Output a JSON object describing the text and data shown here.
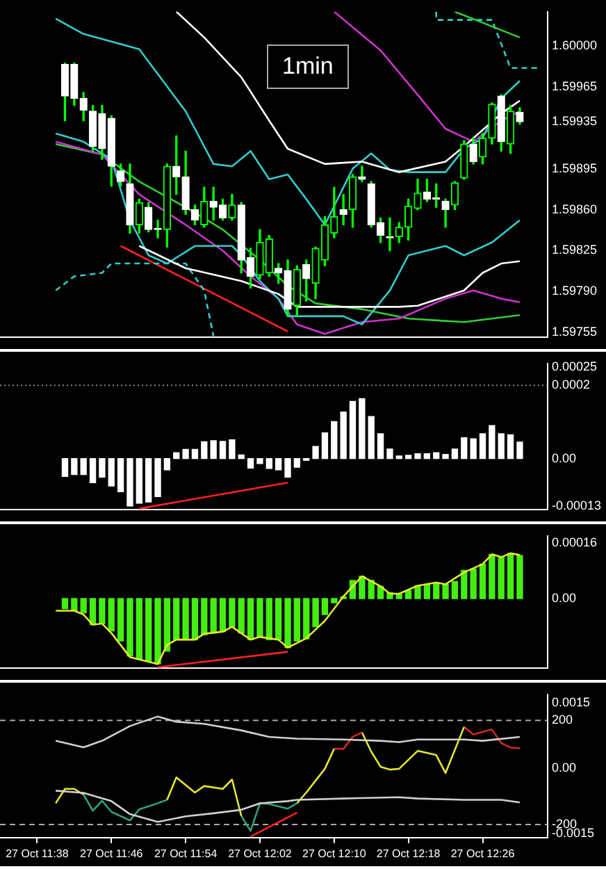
{
  "chart_data": [
    {
      "type": "candlestick",
      "annotations": [
        "1min"
      ],
      "tick_labels": "y",
      "xlim": [
        "--10-27T11:34",
        "--10-27T12:33"
      ],
      "ylim": [
        1.59751,
        1.60029
      ],
      "yticks": [
        {
          "value": 1.6,
          "label": "1.60000"
        },
        {
          "value": 1.59965,
          "label": "1.59965"
        },
        {
          "value": 1.59935,
          "label": "1.59935"
        },
        {
          "value": 1.59895,
          "label": "1.59895"
        },
        {
          "value": 1.5986,
          "label": "1.59860"
        },
        {
          "value": 1.59825,
          "label": "1.59825"
        },
        {
          "value": 1.5979,
          "label": "1.59790"
        },
        {
          "value": 1.59755,
          "label": "1.59755"
        }
      ],
      "x": [
        "--10-27T11:41",
        "--10-27T11:42",
        "--10-27T11:43",
        "--10-27T11:44",
        "--10-27T11:45",
        "--10-27T11:46",
        "--10-27T11:47",
        "--10-27T11:48",
        "--10-27T11:49",
        "--10-27T11:50",
        "--10-27T11:51",
        "--10-27T11:52",
        "--10-27T11:53",
        "--10-27T11:54",
        "--10-27T11:55",
        "--10-27T11:56",
        "--10-27T11:57",
        "--10-27T11:58",
        "--10-27T11:59",
        "--10-27T12:00",
        "--10-27T12:01",
        "--10-27T12:02",
        "--10-27T12:03",
        "--10-27T12:04",
        "--10-27T12:05",
        "--10-27T12:06",
        "--10-27T12:07",
        "--10-27T12:08",
        "--10-27T12:09",
        "--10-27T12:10",
        "--10-27T12:11",
        "--10-27T12:12",
        "--10-27T12:13",
        "--10-27T12:14",
        "--10-27T12:15",
        "--10-27T12:16",
        "--10-27T12:17",
        "--10-27T12:18",
        "--10-27T12:19",
        "--10-27T12:20",
        "--10-27T12:21",
        "--10-27T12:22",
        "--10-27T12:23",
        "--10-27T12:24",
        "--10-27T12:25",
        "--10-27T12:26",
        "--10-27T12:27",
        "--10-27T12:28",
        "--10-27T12:29",
        "--10-27T12:30"
      ],
      "ohlc": [
        [
          1.59984,
          1.59985,
          1.59936,
          1.59957
        ],
        [
          1.59984,
          1.59985,
          1.59949,
          1.59955
        ],
        [
          1.59955,
          1.5996,
          1.59936,
          1.59945
        ],
        [
          1.59944,
          1.59949,
          1.5991,
          1.59914
        ],
        [
          1.59942,
          1.59949,
          1.59903,
          1.59912
        ],
        [
          1.59938,
          1.5994,
          1.5988,
          1.59897
        ],
        [
          1.59893,
          1.59899,
          1.5988,
          1.59884
        ],
        [
          1.59882,
          1.59899,
          1.5984,
          1.59847
        ],
        [
          1.59847,
          1.59869,
          1.5984,
          1.59866
        ],
        [
          1.59862,
          1.59866,
          1.59841,
          1.59843
        ],
        [
          1.59844,
          1.59851,
          1.59836,
          1.59843
        ],
        [
          1.59843,
          1.59899,
          1.59828,
          1.59897
        ],
        [
          1.59897,
          1.59923,
          1.59873,
          1.59888
        ],
        [
          1.59888,
          1.5991,
          1.59856,
          1.5986
        ],
        [
          1.5986,
          1.59864,
          1.59847,
          1.59851
        ],
        [
          1.59847,
          1.59879,
          1.59845,
          1.59867
        ],
        [
          1.59867,
          1.59879,
          1.59851,
          1.59862
        ],
        [
          1.59864,
          1.59869,
          1.59851,
          1.59853
        ],
        [
          1.59853,
          1.59873,
          1.59851,
          1.59864
        ],
        [
          1.59864,
          1.59866,
          1.59806,
          1.59817
        ],
        [
          1.59819,
          1.59827,
          1.59793,
          1.59803
        ],
        [
          1.59804,
          1.59843,
          1.59801,
          1.59832
        ],
        [
          1.59806,
          1.59838,
          1.59803,
          1.59835
        ],
        [
          1.5981,
          1.59814,
          1.59797,
          1.59806
        ],
        [
          1.59808,
          1.59817,
          1.59769,
          1.59775
        ],
        [
          1.59778,
          1.59812,
          1.59769,
          1.59809
        ],
        [
          1.59813,
          1.59817,
          1.59782,
          1.59801
        ],
        [
          1.59797,
          1.59828,
          1.59784,
          1.59827
        ],
        [
          1.59817,
          1.59854,
          1.59812,
          1.59847
        ],
        [
          1.5984,
          1.59879,
          1.59836,
          1.59854
        ],
        [
          1.5986,
          1.59873,
          1.59847,
          1.59856
        ],
        [
          1.5986,
          1.5989,
          1.59845,
          1.59888
        ],
        [
          1.59888,
          1.59897,
          1.59884,
          1.59886
        ],
        [
          1.59882,
          1.59884,
          1.59845,
          1.59847
        ],
        [
          1.59849,
          1.59853,
          1.59832,
          1.59838
        ],
        [
          1.59837,
          1.59853,
          1.59825,
          1.59836
        ],
        [
          1.59837,
          1.59849,
          1.59832,
          1.59845
        ],
        [
          1.59845,
          1.59869,
          1.59834,
          1.59863
        ],
        [
          1.59861,
          1.59886,
          1.5986,
          1.59874
        ],
        [
          1.59875,
          1.59886,
          1.59867,
          1.59869
        ],
        [
          1.5987,
          1.59882,
          1.59862,
          1.59869
        ],
        [
          1.59867,
          1.59869,
          1.59845,
          1.5986
        ],
        [
          1.59864,
          1.59884,
          1.5986,
          1.59883
        ],
        [
          1.59887,
          1.59919,
          1.59886,
          1.59916
        ],
        [
          1.59916,
          1.59921,
          1.59899,
          1.59901
        ],
        [
          1.59905,
          1.59925,
          1.59899,
          1.59921
        ],
        [
          1.59921,
          1.59951,
          1.59916,
          1.5995
        ],
        [
          1.59957,
          1.59958,
          1.5991,
          1.59918
        ],
        [
          1.59916,
          1.59949,
          1.59908,
          1.59944
        ],
        [
          1.59943,
          1.59947,
          1.59933,
          1.59935
        ]
      ],
      "color": "#00ff00",
      "colors": [
        "#ffffff",
        "#ffffff",
        "#ffffff",
        "#ffffff",
        "#ffffff",
        "#ffffff",
        "#ffffff",
        "#ffffff",
        "#00ff00",
        "#ffffff",
        "#ffffff",
        "#00ff00",
        "#ffffff",
        "#ffffff",
        "#ffffff",
        "#00ff00",
        "#ffffff",
        "#ffffff",
        "#00ff00",
        "#ffffff",
        "#ffffff",
        "#00ff00",
        "#00ff00",
        "#ffffff",
        "#ffffff",
        "#00ff00",
        "#ffffff",
        "#00ff00",
        "#00ff00",
        "#00ff00",
        "#ffffff",
        "#00ff00",
        "#ffffff",
        "#ffffff",
        "#ffffff",
        "#ffffff",
        "#00ff00",
        "#00ff00",
        "#00ff00",
        "#ffffff",
        "#ffffff",
        "#ffffff",
        "#00ff00",
        "#00ff00",
        "#ffffff",
        "#00ff00",
        "#00ff00",
        "#ffffff",
        "#00ff00",
        "#ffffff"
      ],
      "series": [
        {
          "type": "line",
          "color": "#ffffff",
          "x": [
            "--10-27T11:53",
            "--10-27T11:56",
            "--10-27T12:00",
            "--10-27T12:03",
            "--10-27T12:05",
            "--10-27T12:09",
            "--10-27T12:13",
            "--10-27T12:17",
            "--10-27T12:22",
            "--10-27T12:24",
            "--10-27T12:28",
            "--10-27T12:30"
          ],
          "values": [
            1.60029,
            1.60007,
            1.59973,
            1.59936,
            1.59912,
            1.59899,
            1.59901,
            1.59892,
            1.59901,
            1.59914,
            1.59942,
            1.59953
          ]
        },
        {
          "type": "line",
          "color": "#ffffff",
          "x": [
            "--10-27T11:49",
            "--10-27T11:54",
            "--10-27T12:00",
            "--10-27T12:04",
            "--10-27T12:06",
            "--10-27T12:11",
            "--10-27T12:17",
            "--10-27T12:19",
            "--10-27T12:24",
            "--10-27T12:26",
            "--10-27T12:28",
            "--10-27T12:30"
          ],
          "values": [
            1.59829,
            1.5981,
            1.59799,
            1.59788,
            1.59777,
            1.59777,
            1.59777,
            1.59778,
            1.59791,
            1.59806,
            1.59814,
            1.59816
          ]
        },
        {
          "type": "line",
          "color": "#33cccc",
          "x": [
            "--10-27T11:40",
            "--10-27T11:43",
            "--10-27T11:49",
            "--10-27T11:54",
            "--10-27T11:57",
            "--10-27T11:59",
            "--10-27T12:01",
            "--10-27T12:03",
            "--10-27T12:05",
            "--10-27T12:07",
            "--10-27T12:09",
            "--10-27T12:12",
            "--10-27T12:14",
            "--10-27T12:16",
            "--10-27T12:18",
            "--10-27T12:22",
            "--10-27T12:24",
            "--10-27T12:26",
            "--10-27T12:28",
            "--10-27T12:30"
          ],
          "values": [
            1.60023,
            1.6001,
            1.59997,
            1.59944,
            1.59899,
            1.59897,
            1.5991,
            1.59886,
            1.5989,
            1.59869,
            1.59847,
            1.59895,
            1.59908,
            1.59894,
            1.59892,
            1.59892,
            1.59912,
            1.59921,
            1.59955,
            1.5997
          ]
        },
        {
          "type": "line",
          "color": "#33cccc",
          "x": [
            "--10-27T11:40",
            "--10-27T11:43",
            "--10-27T11:46",
            "--10-27T11:48",
            "--10-27T11:50",
            "--10-27T11:52",
            "--10-27T11:55",
            "--10-27T11:59",
            "--10-27T12:00",
            "--10-27T12:02",
            "--10-27T12:04",
            "--10-27T12:05",
            "--10-27T12:07",
            "--10-27T12:11",
            "--10-27T12:13",
            "--10-27T12:16",
            "--10-27T12:18",
            "--10-27T12:22",
            "--10-27T12:24",
            "--10-27T12:27",
            "--10-27T12:30"
          ],
          "values": [
            1.59925,
            1.59918,
            1.59903,
            1.59851,
            1.59821,
            1.59814,
            1.59829,
            1.59829,
            1.59821,
            1.59799,
            1.59784,
            1.59769,
            1.59769,
            1.59769,
            1.59762,
            1.59791,
            1.59821,
            1.59829,
            1.59821,
            1.59832,
            1.59851
          ]
        },
        {
          "type": "line",
          "color": "#cc33cc",
          "x": [
            "--10-27T12:10",
            "--10-27T12:15",
            "--10-27T12:19",
            "--10-27T12:22",
            "--10-27T12:25",
            "--10-27T12:28",
            "--10-27T12:30"
          ],
          "values": [
            1.60029,
            1.59996,
            1.59958,
            1.59929,
            1.59918,
            1.59936,
            1.59944
          ]
        },
        {
          "type": "line",
          "color": "#cc33cc",
          "x": [
            "--10-27T11:40",
            "--10-27T11:45",
            "--10-27T11:49",
            "--10-27T11:54",
            "--10-27T11:58",
            "--10-27T12:01",
            "--10-27T12:04",
            "--10-27T12:06",
            "--10-27T12:09",
            "--10-27T12:13",
            "--10-27T12:17",
            "--10-27T12:22",
            "--10-27T12:25",
            "--10-27T12:28",
            "--10-27T12:30"
          ],
          "values": [
            1.59918,
            1.59907,
            1.59873,
            1.59847,
            1.59825,
            1.59803,
            1.59784,
            1.59762,
            1.59754,
            1.59764,
            1.59767,
            1.59784,
            1.59791,
            1.59784,
            1.59781
          ]
        },
        {
          "type": "line",
          "color": "#33cc33",
          "x": [
            "--10-27T11:40",
            "--10-27T11:45",
            "--10-27T11:49",
            "--10-27T11:54",
            "--10-27T11:58",
            "--10-27T12:02",
            "--10-27T12:05",
            "--10-27T12:08",
            "--10-27T12:13",
            "--10-27T12:18",
            "--10-27T12:22",
            "--10-27T12:24",
            "--10-27T12:30"
          ],
          "values": [
            1.59916,
            1.59907,
            1.59884,
            1.59862,
            1.59843,
            1.59817,
            1.59795,
            1.5978,
            1.59775,
            1.59767,
            1.59765,
            1.59764,
            1.5977
          ]
        },
        {
          "type": "line",
          "color": "#33cc33",
          "x": [
            "--10-27T12:23",
            "--10-27T12:30"
          ],
          "values": [
            1.60029,
            1.60007
          ]
        },
        {
          "type": "line",
          "color": "#33cccc",
          "line_style": "dashed",
          "x": [
            "--10-27T11:40",
            "--10-27T11:42",
            "--10-27T11:45",
            "--10-27T11:46",
            "--10-27T11:54",
            "--10-27T11:56",
            "--10-27T11:57"
          ],
          "values": [
            1.59791,
            1.59803,
            1.59806,
            1.59814,
            1.59814,
            1.59791,
            1.59752
          ]
        },
        {
          "type": "line",
          "color": "#33cccc",
          "line_style": "dashed",
          "x": [
            "--10-27T12:21",
            "--10-27T12:21",
            "--10-27T12:27",
            "--10-27T12:29",
            "--10-27T12:32"
          ],
          "values": [
            1.60029,
            1.60022,
            1.60022,
            1.59981,
            1.59981
          ]
        },
        {
          "type": "line",
          "color": "#ff2222",
          "x": [
            "--10-27T11:47",
            "--10-27T12:05"
          ],
          "values": [
            1.59829,
            1.59756
          ]
        }
      ]
    },
    {
      "type": "bar",
      "tick_labels": "y",
      "xlim": [
        "--10-27T11:34",
        "--10-27T12:33"
      ],
      "ylim": [
        -0.00014,
        0.00026
      ],
      "yticks": [
        0.00025,
        0.0002,
        {
          "value": 0,
          "label": "0.00"
        },
        -0.00013
      ],
      "ref_lines": [
        {
          "axis": "y",
          "value": 0.0002,
          "color": "#888888",
          "line_style": "dotted"
        }
      ],
      "color": "#ffffff",
      "x": [
        "--10-27T11:41",
        "--10-27T11:42",
        "--10-27T11:43",
        "--10-27T11:44",
        "--10-27T11:45",
        "--10-27T11:46",
        "--10-27T11:47",
        "--10-27T11:48",
        "--10-27T11:49",
        "--10-27T11:50",
        "--10-27T11:51",
        "--10-27T11:52",
        "--10-27T11:53",
        "--10-27T11:54",
        "--10-27T11:55",
        "--10-27T11:56",
        "--10-27T11:57",
        "--10-27T11:58",
        "--10-27T11:59",
        "--10-27T12:00",
        "--10-27T12:01",
        "--10-27T12:02",
        "--10-27T12:03",
        "--10-27T12:04",
        "--10-27T12:05",
        "--10-27T12:06",
        "--10-27T12:07",
        "--10-27T12:08",
        "--10-27T12:09",
        "--10-27T12:10",
        "--10-27T12:11",
        "--10-27T12:12",
        "--10-27T12:13",
        "--10-27T12:14",
        "--10-27T12:15",
        "--10-27T12:16",
        "--10-27T12:17",
        "--10-27T12:18",
        "--10-27T12:19",
        "--10-27T12:20",
        "--10-27T12:21",
        "--10-27T12:22",
        "--10-27T12:23",
        "--10-27T12:24",
        "--10-27T12:25",
        "--10-27T12:26",
        "--10-27T12:27",
        "--10-27T12:28",
        "--10-27T12:29",
        "--10-27T12:30"
      ],
      "values": [
        -4.9e-05,
        -4.4e-05,
        -4.4e-05,
        -6.6e-05,
        -5.1e-05,
        -7.5e-05,
        -9.1e-05,
        -0.00013,
        -0.000122,
        -0.000119,
        -0.000104,
        -3.1e-05,
        1.6e-05,
        2.5e-05,
        2.5e-05,
        4.6e-05,
        4.9e-05,
        4.7e-05,
        5.1e-05,
        1e-05,
        -2.6e-05,
        -1.4e-05,
        -2.7e-05,
        -3.1e-05,
        -5.1e-05,
        -2.4e-05,
        -5e-06,
        3.3e-05,
        7e-05,
        0.000101,
        0.000127,
        0.000156,
        0.000164,
        0.000115,
        6.8e-05,
        2.6e-05,
        7e-06,
        9e-06,
        1.3e-05,
        1.3e-05,
        1.6e-05,
        1.1e-05,
        2.6e-05,
        5.7e-05,
        5.4e-05,
        6.8e-05,
        9e-05,
        6.8e-05,
        6.5e-05,
        4.5e-05
      ],
      "series": [
        {
          "type": "line",
          "color": "#ff2222",
          "x": [
            "--10-27T11:49",
            "--10-27T12:05"
          ],
          "values": [
            -0.000137,
            -6.6e-05
          ]
        }
      ]
    },
    {
      "type": "bar",
      "tick_labels": "y",
      "xlim": [
        "--10-27T11:34",
        "--10-27T12:33"
      ],
      "ylim": [
        -0.0002,
        0.00018
      ],
      "yticks": [
        0.00016,
        {
          "value": 0,
          "label": "0.00"
        }
      ],
      "color": "#44ee11",
      "x": [
        "--10-27T11:41",
        "--10-27T11:42",
        "--10-27T11:43",
        "--10-27T11:44",
        "--10-27T11:45",
        "--10-27T11:46",
        "--10-27T11:47",
        "--10-27T11:48",
        "--10-27T11:49",
        "--10-27T11:50",
        "--10-27T11:51",
        "--10-27T11:52",
        "--10-27T11:53",
        "--10-27T11:54",
        "--10-27T11:55",
        "--10-27T11:56",
        "--10-27T11:57",
        "--10-27T11:58",
        "--10-27T11:59",
        "--10-27T12:00",
        "--10-27T12:01",
        "--10-27T12:02",
        "--10-27T12:03",
        "--10-27T12:04",
        "--10-27T12:05",
        "--10-27T12:06",
        "--10-27T12:07",
        "--10-27T12:08",
        "--10-27T12:09",
        "--10-27T12:10",
        "--10-27T12:11",
        "--10-27T12:12",
        "--10-27T12:13",
        "--10-27T12:14",
        "--10-27T12:15",
        "--10-27T12:16",
        "--10-27T12:17",
        "--10-27T12:18",
        "--10-27T12:19",
        "--10-27T12:20",
        "--10-27T12:21",
        "--10-27T12:22",
        "--10-27T12:23",
        "--10-27T12:24",
        "--10-27T12:25",
        "--10-27T12:26",
        "--10-27T12:27",
        "--10-27T12:28",
        "--10-27T12:29",
        "--10-27T12:30"
      ],
      "values": [
        -2.9e-05,
        -3.5e-05,
        -4.1e-05,
        -7.5e-05,
        -7.2e-05,
        -9.3e-05,
        -0.000122,
        -0.000165,
        -0.000174,
        -0.00018,
        -0.000188,
        -0.000151,
        -0.000118,
        -0.000118,
        -0.000118,
        -0.000104,
        -9.9e-05,
        -9.5e-05,
        -8.1e-05,
        -9.9e-05,
        -0.000118,
        -0.00011,
        -0.000118,
        -0.000118,
        -0.000141,
        -0.000122,
        -0.000116,
        -8.1e-05,
        -4.6e-05,
        -1.2e-05,
        5e-06,
        5.2e-05,
        6.4e-05,
        5.2e-05,
        3.5e-05,
        1.7e-05,
        1.2e-05,
        2.3e-05,
        3.7e-05,
        4.1e-05,
        4.6e-05,
        4.1e-05,
        4.9e-05,
        8.1e-05,
        8.5e-05,
        9.9e-05,
        0.000127,
        0.000119,
        0.00013,
        0.000124
      ],
      "series": [
        {
          "type": "line",
          "color": "#e6e633",
          "x": [
            "--10-27T11:40",
            "--10-27T11:42",
            "--10-27T11:43",
            "--10-27T11:44",
            "--10-27T11:45",
            "--10-27T11:46",
            "--10-27T11:48",
            "--10-27T11:51",
            "--10-27T11:52",
            "--10-27T11:53",
            "--10-27T11:55",
            "--10-27T11:56",
            "--10-27T11:58",
            "--10-27T11:59",
            "--10-27T12:01",
            "--10-27T12:02",
            "--10-27T12:04",
            "--10-27T12:05",
            "--10-27T12:07",
            "--10-27T12:09",
            "--10-27T12:11",
            "--10-27T12:13",
            "--10-27T12:15",
            "--10-27T12:16",
            "--10-27T12:17",
            "--10-27T12:19",
            "--10-27T12:21",
            "--10-27T12:22",
            "--10-27T12:24",
            "--10-27T12:26",
            "--10-27T12:27",
            "--10-27T12:28",
            "--10-27T12:29",
            "--10-27T12:30"
          ],
          "values": [
            -3.5e-05,
            -3.5e-05,
            -4.6e-05,
            -7.5e-05,
            -7.2e-05,
            -9.9e-05,
            -0.000168,
            -0.000188,
            -0.000133,
            -0.000118,
            -0.000118,
            -0.000101,
            -9.5e-05,
            -8.1e-05,
            -0.000118,
            -0.00011,
            -0.000118,
            -0.000141,
            -0.000114,
            -6.4e-05,
            6e-06,
            6.4e-05,
            3.5e-05,
            1.4e-05,
            1.4e-05,
            3.7e-05,
            4.6e-05,
            4.1e-05,
            7.5e-05,
            9.9e-05,
            0.000127,
            0.000119,
            0.00013,
            0.000125
          ]
        },
        {
          "type": "line",
          "color": "#ff2222",
          "x": [
            "--10-27T11:51",
            "--10-27T12:05"
          ],
          "values": [
            -0.000197,
            -0.000153
          ]
        }
      ]
    },
    {
      "type": "line",
      "xlim": [
        "--10-27T11:34",
        "--10-27T12:33"
      ],
      "ylim": [
        -250,
        300
      ],
      "y2lim": [
        -0.0016,
        0.0017
      ],
      "xticks": [
        {
          "value": "--10-27T11:38",
          "label": "27 Oct 11:38"
        },
        {
          "value": "--10-27T11:46",
          "label": "27 Oct 11:46"
        },
        {
          "value": "--10-27T11:54",
          "label": "27 Oct 11:54"
        },
        {
          "value": "--10-27T12:02",
          "label": "27 Oct 12:02"
        },
        {
          "value": "--10-27T12:10",
          "label": "27 Oct 12:10"
        },
        {
          "value": "--10-27T12:18",
          "label": "27 Oct 12:18"
        },
        {
          "value": "--10-27T12:26",
          "label": "27 Oct 12:26"
        }
      ],
      "yticks": [
        200,
        -200
      ],
      "y2ticks": [
        0.0015,
        {
          "value": 0,
          "label": "0.00"
        },
        -0.0015
      ],
      "ref_lines": [
        {
          "axis": "y",
          "value": 200,
          "color": "#aaaaaa",
          "line_style": "dashed"
        },
        {
          "axis": "y",
          "value": -200,
          "color": "#aaaaaa",
          "line_style": "dashed"
        }
      ],
      "series": [
        {
          "axis": "y2",
          "color": "#d0d0d0",
          "x": [
            "--10-27T11:40",
            "--10-27T11:43",
            "--10-27T11:45",
            "--10-27T11:48",
            "--10-27T11:51",
            "--10-27T11:53",
            "--10-27T11:56",
            "--10-27T12:00",
            "--10-27T12:03",
            "--10-27T12:06",
            "--10-27T12:11",
            "--10-27T12:15",
            "--10-27T12:17",
            "--10-27T12:19",
            "--10-27T12:24",
            "--10-27T12:26",
            "--10-27T12:30"
          ],
          "values": [
            0.00063,
            0.00048,
            0.00063,
            0.00097,
            0.00119,
            0.00107,
            0.00102,
            0.00087,
            0.00072,
            0.00068,
            0.00066,
            0.00063,
            0.0006,
            0.00066,
            0.00066,
            0.00063,
            0.00072
          ]
        },
        {
          "axis": "y2",
          "color": "#d0d0d0",
          "x": [
            "--10-27T11:40",
            "--10-27T11:43",
            "--10-27T11:46",
            "--10-27T11:48",
            "--10-27T11:51",
            "--10-27T11:54",
            "--10-27T11:57",
            "--10-27T12:00",
            "--10-27T12:02",
            "--10-27T12:05",
            "--10-27T12:06",
            "--10-27T12:11",
            "--10-27T12:17",
            "--10-27T12:19",
            "--10-27T12:24",
            "--10-27T12:28",
            "--10-27T12:30"
          ],
          "values": [
            -0.00052,
            -0.00057,
            -0.00076,
            -0.00106,
            -0.00124,
            -0.00111,
            -0.00104,
            -0.00096,
            -0.00081,
            -0.00076,
            -0.00073,
            -0.0007,
            -0.00067,
            -0.0007,
            -0.00073,
            -0.00073,
            -0.00079
          ]
        },
        {
          "color": "#e6e633",
          "x": [
            "--10-27T11:40",
            "--10-27T11:41",
            "--10-27T11:42",
            "--10-27T11:43"
          ],
          "values": [
            -118,
            -63,
            -63,
            -85
          ]
        },
        {
          "color": "#2ea37a",
          "x": [
            "--10-27T11:43",
            "--10-27T11:44",
            "--10-27T11:45",
            "--10-27T11:46",
            "--10-27T11:48",
            "--10-27T11:49",
            "--10-27T11:51",
            "--10-27T11:52"
          ],
          "values": [
            -85,
            -147,
            -109,
            -151,
            -184,
            -142,
            -118,
            -105
          ]
        },
        {
          "color": "#e6e633",
          "x": [
            "--10-27T11:52",
            "--10-27T11:53",
            "--10-27T11:55",
            "--10-27T11:56",
            "--10-27T11:58",
            "--10-27T11:59",
            "--10-27T12:00"
          ],
          "values": [
            -105,
            -19,
            -77,
            -52,
            -63,
            -27,
            -167
          ]
        },
        {
          "color": "#2ea37a",
          "x": [
            "--10-27T12:00",
            "--10-27T12:01",
            "--10-27T12:02",
            "--10-27T12:03",
            "--10-27T12:05",
            "--10-27T12:06"
          ],
          "values": [
            -167,
            -225,
            -118,
            -121,
            -139,
            -118
          ]
        },
        {
          "color": "#e6e633",
          "x": [
            "--10-27T12:06",
            "--10-27T12:07",
            "--10-27T12:09",
            "--10-27T12:10"
          ],
          "values": [
            -118,
            -77,
            14,
            91
          ]
        },
        {
          "color": "#cc2a1f",
          "x": [
            "--10-27T12:10",
            "--10-27T12:11",
            "--10-27T12:12",
            "--10-27T12:13"
          ],
          "values": [
            91,
            91,
            137,
            154
          ]
        },
        {
          "color": "#e6e633",
          "x": [
            "--10-27T12:13",
            "--10-27T12:14",
            "--10-27T12:15",
            "--10-27T12:16",
            "--10-27T12:17",
            "--10-27T12:19",
            "--10-27T12:21",
            "--10-27T12:22",
            "--10-27T12:24"
          ],
          "values": [
            154,
            80,
            22,
            11,
            14,
            83,
            67,
            -2,
            175
          ]
        },
        {
          "color": "#cc2a1f",
          "x": [
            "--10-27T12:24",
            "--10-27T12:25",
            "--10-27T12:27",
            "--10-27T12:28",
            "--10-27T12:29",
            "--10-27T12:30"
          ],
          "values": [
            175,
            146,
            165,
            113,
            96,
            93
          ]
        },
        {
          "color": "#ff2222",
          "x": [
            "--10-27T12:01",
            "--10-27T12:06"
          ],
          "values": [
            -246,
            -154
          ]
        }
      ]
    }
  ]
}
